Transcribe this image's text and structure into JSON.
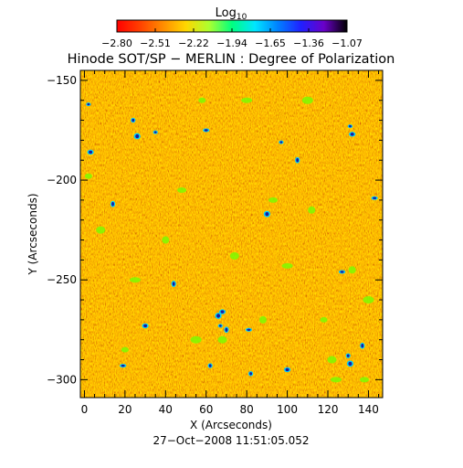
{
  "chart_data": {
    "type": "heatmap",
    "title": "Hinode SOT/SP − MERLIN : Degree of Polarization",
    "xlabel": "X (Arcseconds)",
    "ylabel": "Y (Arcseconds)",
    "xlim": [
      -2,
      147
    ],
    "ylim": [
      -309,
      -145
    ],
    "x_ticks": [
      0,
      20,
      40,
      60,
      80,
      100,
      120,
      140
    ],
    "y_ticks": [
      -150,
      -200,
      -250,
      -300
    ],
    "x_minor_step": 5,
    "y_minor_step": 10,
    "colorbar": {
      "label_main": "Log",
      "label_sub": "10",
      "range": [
        -2.8,
        -1.07
      ],
      "tick_labels": [
        "−2.80",
        "−2.51",
        "−2.22",
        "−1.94",
        "−1.65",
        "−1.36",
        "−1.07"
      ],
      "colors": [
        "#ff0000",
        "#ff4000",
        "#ff8c00",
        "#ffd700",
        "#adff2f",
        "#00ff7f",
        "#00e5ff",
        "#0080ff",
        "#2020ff",
        "#6a00c8",
        "#000000"
      ]
    },
    "timestamp": "27−Oct−2008 11:51:05.052",
    "dark_patches": [
      [
        2,
        -162
      ],
      [
        3,
        -186
      ],
      [
        14,
        -212
      ],
      [
        19,
        -293
      ],
      [
        24,
        -170
      ],
      [
        26,
        -178
      ],
      [
        35,
        -176
      ],
      [
        30,
        -273
      ],
      [
        44,
        -252
      ],
      [
        60,
        -175
      ],
      [
        62,
        -293
      ],
      [
        66,
        -268
      ],
      [
        67,
        -273
      ],
      [
        68,
        -266
      ],
      [
        70,
        -275
      ],
      [
        81,
        -275
      ],
      [
        82,
        -297
      ],
      [
        90,
        -217
      ],
      [
        97,
        -181
      ],
      [
        100,
        -295
      ],
      [
        105,
        -190
      ],
      [
        127,
        -246
      ],
      [
        130,
        -288
      ],
      [
        131,
        -292
      ],
      [
        131,
        -173
      ],
      [
        132,
        -177
      ],
      [
        137,
        -283
      ],
      [
        143,
        -209
      ]
    ],
    "green_patches": [
      [
        2,
        -198
      ],
      [
        8,
        -225
      ],
      [
        25,
        -250
      ],
      [
        40,
        -230
      ],
      [
        48,
        -205
      ],
      [
        55,
        -280
      ],
      [
        58,
        -160
      ],
      [
        74,
        -238
      ],
      [
        80,
        -160
      ],
      [
        88,
        -270
      ],
      [
        93,
        -210
      ],
      [
        110,
        -160
      ],
      [
        118,
        -270
      ],
      [
        122,
        -290
      ],
      [
        124,
        -300
      ],
      [
        132,
        -245
      ],
      [
        138,
        -300
      ],
      [
        140,
        -260
      ],
      [
        20,
        -285
      ],
      [
        68,
        -280
      ],
      [
        100,
        -243
      ],
      [
        112,
        -215
      ]
    ]
  }
}
